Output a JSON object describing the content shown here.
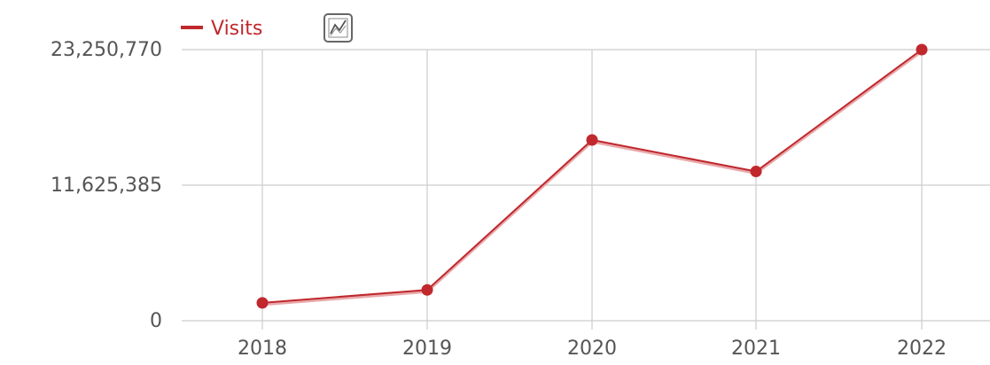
{
  "legend": {
    "series_label": "Visits",
    "toggle_icon": "line-chart-icon"
  },
  "colors": {
    "series": "#c0282d",
    "grid": "#cccccc",
    "axis_text": "#555555",
    "icon": "#666666"
  },
  "chart_data": {
    "type": "line",
    "x": [
      "2018",
      "2019",
      "2020",
      "2021",
      "2022"
    ],
    "series": [
      {
        "name": "Visits",
        "values": [
          1530000,
          2640000,
          15500000,
          12800000,
          23250770
        ]
      }
    ],
    "y_ticks": [
      {
        "value": 0,
        "label": "0"
      },
      {
        "value": 11625385,
        "label": "11,625,385"
      },
      {
        "value": 23250770,
        "label": "23,250,770"
      }
    ],
    "ylim": [
      0,
      23250770
    ],
    "grid": true,
    "legend_position": "top-left"
  }
}
